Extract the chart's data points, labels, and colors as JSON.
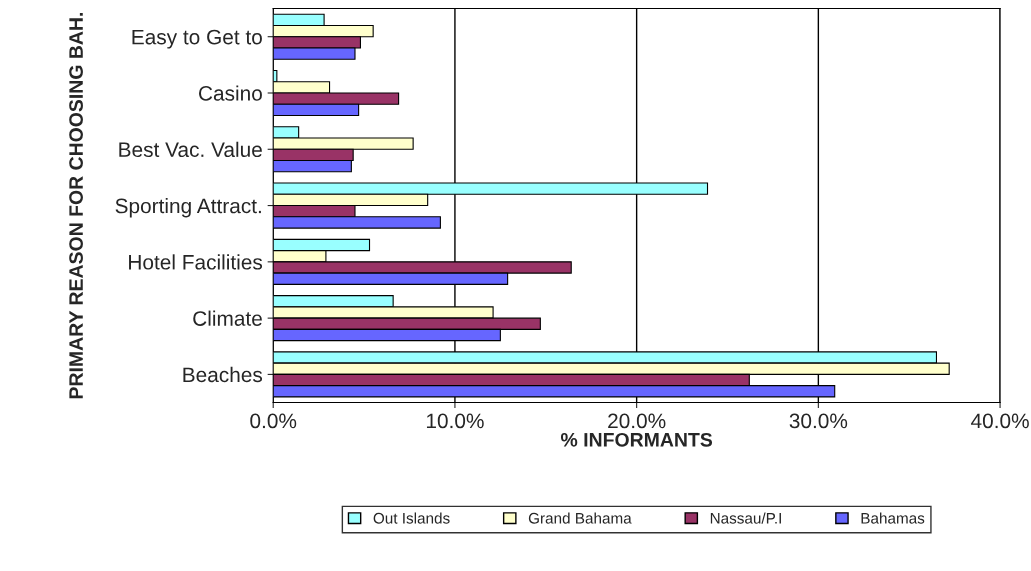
{
  "chart_data": {
    "type": "bar",
    "orientation": "horizontal",
    "xlabel": "% INFORMANTS",
    "ylabel": "PRIMARY REASON FOR CHOOSING BAH.",
    "categories": [
      "Easy to Get to",
      "Casino",
      "Best Vac. Value",
      "Sporting Attract.",
      "Hotel Facilities",
      "Climate",
      "Beaches"
    ],
    "series": [
      {
        "name": "Out Islands",
        "color": "#99ffff",
        "values": [
          2.8,
          0.2,
          1.4,
          23.9,
          5.3,
          6.6,
          36.5
        ]
      },
      {
        "name": "Grand Bahama",
        "color": "#ffffcc",
        "values": [
          5.5,
          3.1,
          7.7,
          8.5,
          2.9,
          12.1,
          37.2
        ]
      },
      {
        "name": "Nassau/P.I",
        "color": "#993366",
        "values": [
          4.8,
          6.9,
          4.4,
          4.5,
          16.4,
          14.7,
          26.2
        ]
      },
      {
        "name": "Bahamas",
        "color": "#6666ff",
        "values": [
          4.5,
          4.7,
          4.3,
          9.2,
          12.9,
          12.5,
          30.9
        ]
      }
    ],
    "xlim": [
      0,
      40
    ],
    "xticks": [
      {
        "value": 0,
        "label": "0.0%"
      },
      {
        "value": 10,
        "label": "10.0%"
      },
      {
        "value": 20,
        "label": "20.0%"
      },
      {
        "value": 30,
        "label": "30.0%"
      },
      {
        "value": 40,
        "label": "40.0%"
      }
    ],
    "grid": "x",
    "legend": "bottom"
  }
}
